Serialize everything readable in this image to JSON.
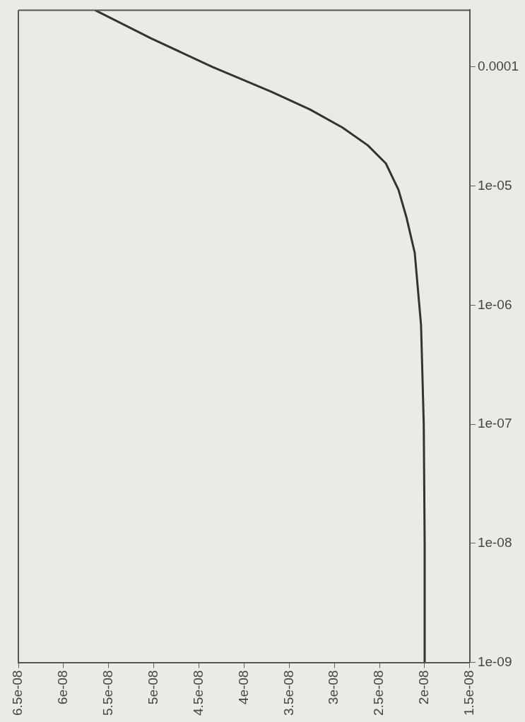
{
  "chart_data": {
    "type": "line",
    "log": "y2",
    "grid": false,
    "marker": "none",
    "line_style": "solid",
    "legend": false,
    "x": [
      2e-08,
      2e-08,
      2.01e-08,
      2.04e-08,
      2.11e-08,
      2.2e-08,
      2.29e-08,
      2.43e-08,
      2.63e-08,
      2.91e-08,
      3.27e-08,
      3.7e-08,
      4.35e-08,
      5.03e-08,
      5.65e-08
    ],
    "series": [
      {
        "color": "#333333",
        "axis": "y2",
        "values": [
          1e-09,
          1e-08,
          1e-07,
          6.8e-07,
          2.75e-06,
          5.4e-06,
          9.3e-06,
          1.55e-05,
          2.2e-05,
          3.1e-05,
          4.4e-05,
          6.2e-05,
          0.0001,
          0.000174,
          0.0003
        ]
      }
    ],
    "y2lim": [
      1e-09,
      0.0003
    ],
    "y2ticks": [
      {
        "value": 1e-09,
        "label": "1e-09"
      },
      {
        "value": 1e-08,
        "label": "1e-08"
      },
      {
        "value": 1e-07,
        "label": "1e-07"
      },
      {
        "value": 1e-06,
        "label": "1e-06"
      },
      {
        "value": 1e-05,
        "label": "1e-05"
      },
      0.0001
    ],
    "xlim": [
      6.5e-08,
      1.5e-08
    ],
    "xticks": [
      {
        "value": 1.5e-08,
        "label": "1.5e-08"
      },
      {
        "value": 2e-08,
        "label": "2e-08"
      },
      {
        "value": 2.5e-08,
        "label": "2.5e-08"
      },
      {
        "value": 3e-08,
        "label": "3e-08"
      },
      {
        "value": 3.5e-08,
        "label": "3.5e-08"
      },
      {
        "value": 4e-08,
        "label": "4e-08"
      },
      {
        "value": 4.5e-08,
        "label": "4.5e-08"
      },
      {
        "value": 5e-08,
        "label": "5e-08"
      },
      {
        "value": 5.5e-08,
        "label": "5.5e-08"
      },
      {
        "value": 6e-08,
        "label": "6e-08"
      },
      {
        "value": 6.5e-08,
        "label": "6.5e-08"
      }
    ]
  }
}
